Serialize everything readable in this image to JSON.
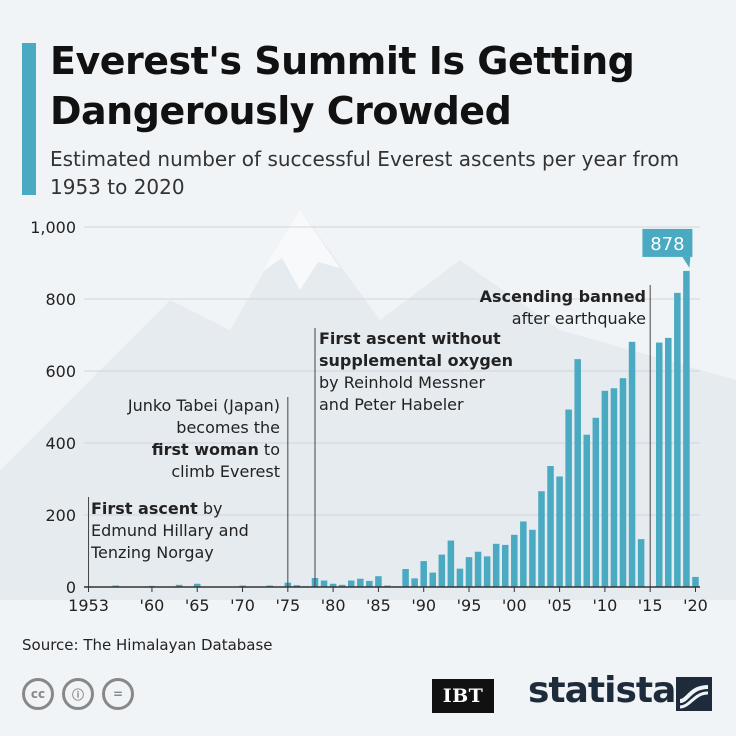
{
  "header": {
    "title": "Everest's Summit Is Getting Dangerously Crowded",
    "subtitle": "Estimated number of successful Everest ascents per year from 1953 to 2020"
  },
  "footer": {
    "source": "Source: The Himalayan Database",
    "cc_icons": [
      "cc",
      "ⓘ",
      "="
    ],
    "ibt_logo": "IBT",
    "statista_logo": "statista"
  },
  "colors": {
    "bar": "#4aaac1",
    "accent": "#4aaac1",
    "annotation_line": "#444444",
    "grid": "#cfd6dd"
  },
  "chart_data": {
    "type": "bar",
    "title": "Everest's Summit Is Getting Dangerously Crowded",
    "subtitle": "Estimated number of successful Everest ascents per year from 1953 to 2020",
    "ylim": [
      0,
      1000
    ],
    "yticks": [
      0,
      200,
      400,
      600,
      800,
      1000
    ],
    "ytick_labels": [
      "0",
      "200",
      "400",
      "600",
      "800",
      "1,000"
    ],
    "xticks": [
      1953,
      1960,
      1965,
      1970,
      1975,
      1980,
      1985,
      1990,
      1995,
      2000,
      2005,
      2010,
      2015,
      2020
    ],
    "xtick_labels": [
      "1953",
      "'60",
      "'65",
      "'70",
      "'75",
      "'80",
      "'85",
      "'90",
      "'95",
      "'00",
      "'05",
      "'10",
      "'15",
      "'20"
    ],
    "grid": true,
    "x": [
      1953,
      1954,
      1955,
      1956,
      1957,
      1958,
      1959,
      1960,
      1961,
      1962,
      1963,
      1964,
      1965,
      1966,
      1967,
      1968,
      1969,
      1970,
      1971,
      1972,
      1973,
      1974,
      1975,
      1976,
      1977,
      1978,
      1979,
      1980,
      1981,
      1982,
      1983,
      1984,
      1985,
      1986,
      1987,
      1988,
      1989,
      1990,
      1991,
      1992,
      1993,
      1994,
      1995,
      1996,
      1997,
      1998,
      1999,
      2000,
      2001,
      2002,
      2003,
      2004,
      2005,
      2006,
      2007,
      2008,
      2009,
      2010,
      2011,
      2012,
      2013,
      2014,
      2015,
      2016,
      2017,
      2018,
      2019,
      2020
    ],
    "values": [
      2,
      0,
      0,
      4,
      0,
      0,
      0,
      3,
      0,
      0,
      6,
      0,
      9,
      0,
      0,
      0,
      0,
      4,
      0,
      0,
      4,
      0,
      12,
      5,
      2,
      25,
      18,
      9,
      6,
      18,
      23,
      17,
      30,
      4,
      2,
      50,
      24,
      72,
      40,
      90,
      129,
      51,
      83,
      98,
      85,
      120,
      117,
      145,
      182,
      159,
      266,
      336,
      307,
      493,
      633,
      423,
      470,
      545,
      552,
      580,
      681,
      133,
      0,
      679,
      692,
      817,
      878,
      28
    ],
    "value_labels": [
      {
        "x": 2019,
        "label": "878"
      }
    ],
    "annotations": [
      {
        "id": "first-ascent",
        "x": 1953,
        "lines": [
          {
            "bold": "First ascent",
            "rest": " by"
          },
          {
            "rest": "Edmund Hillary and"
          },
          {
            "rest": "Tenzing Norgay"
          }
        ]
      },
      {
        "id": "junko-tabei",
        "x": 1975,
        "lines": [
          {
            "rest": "Junko Tabei (Japan)"
          },
          {
            "rest": "becomes the"
          },
          {
            "bold": "first woman",
            "rest": " to"
          },
          {
            "rest": "climb Everest"
          }
        ]
      },
      {
        "id": "without-oxygen",
        "x": 1978,
        "lines": [
          {
            "bold": "First ascent without"
          },
          {
            "bold": "supplemental oxygen"
          },
          {
            "rest": "by Reinhold Messner"
          },
          {
            "rest": "and Peter Habeler"
          }
        ]
      },
      {
        "id": "banned",
        "x": 2015,
        "lines": [
          {
            "bold": "Ascending banned"
          },
          {
            "rest": "after earthquake"
          }
        ]
      }
    ]
  }
}
